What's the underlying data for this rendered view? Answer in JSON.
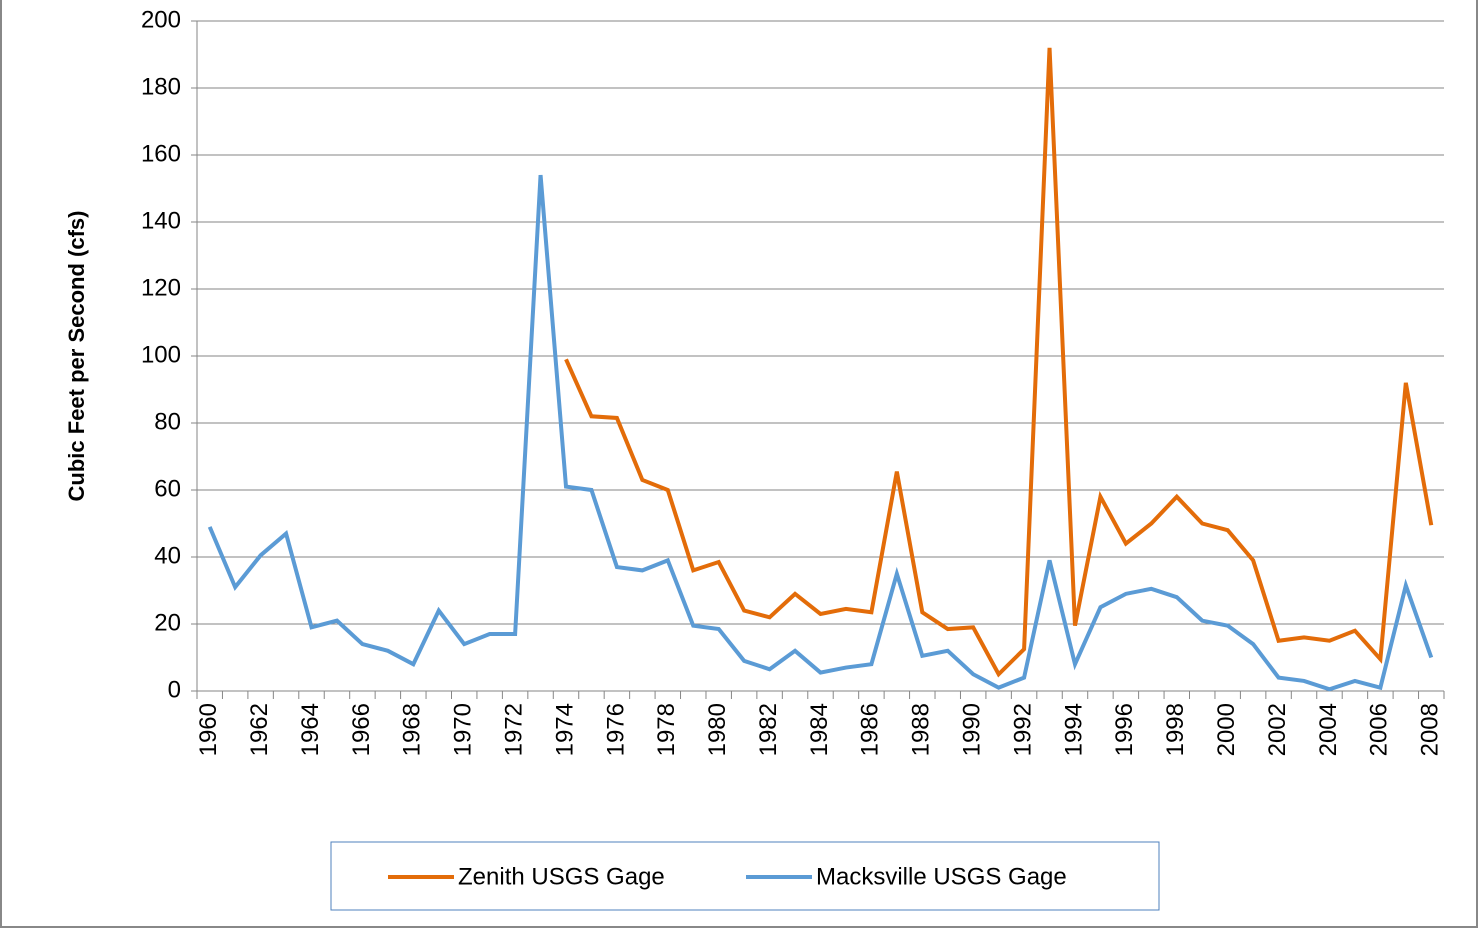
{
  "chart_data": {
    "type": "line",
    "y_label": "Cubic Feet per Second (cfs)",
    "categories": [
      "1960",
      null,
      "1962",
      null,
      "1964",
      null,
      "1966",
      null,
      "1968",
      null,
      "1970",
      null,
      "1972",
      null,
      "1974",
      null,
      "1976",
      null,
      "1978",
      null,
      "1980",
      null,
      "1982",
      null,
      "1984",
      null,
      "1986",
      null,
      "1988",
      null,
      "1990",
      null,
      "1992",
      null,
      "1994",
      null,
      "1996",
      null,
      "1998",
      null,
      "2000",
      null,
      "2002",
      null,
      "2004",
      null,
      "2006",
      null,
      "2008"
    ],
    "series": [
      {
        "name": "Zenith USGS Gage",
        "color": "#e36c09",
        "values": [
          null,
          null,
          null,
          null,
          null,
          null,
          null,
          null,
          null,
          null,
          null,
          null,
          null,
          null,
          99,
          82,
          81.5,
          63,
          60,
          36,
          38.5,
          24,
          22,
          29,
          23,
          24.5,
          23.5,
          65.5,
          23.5,
          18.5,
          19,
          5,
          12.5,
          192,
          19.5,
          58,
          44,
          50,
          58,
          50,
          48,
          39,
          15,
          16,
          15,
          18,
          9.5,
          92,
          49.5
        ]
      },
      {
        "name": "Macksville USGS Gage",
        "color": "#5b9bd5",
        "values": [
          49,
          31,
          40.5,
          47,
          19,
          21,
          14,
          12,
          8,
          24,
          14,
          17,
          17,
          154,
          61,
          60,
          37,
          36,
          39,
          19.5,
          18.5,
          9,
          6.5,
          12,
          5.5,
          7,
          8,
          35,
          10.5,
          12,
          5,
          1,
          4,
          39,
          8,
          25,
          29,
          30.5,
          28,
          21,
          19.5,
          14,
          4,
          3,
          0.5,
          3,
          1,
          31.5,
          10
        ]
      }
    ],
    "ylim": [
      0,
      200
    ],
    "yticks": [
      0,
      20,
      40,
      60,
      80,
      100,
      120,
      140,
      160,
      180,
      200
    ],
    "grid": true,
    "legend": "bottom"
  }
}
